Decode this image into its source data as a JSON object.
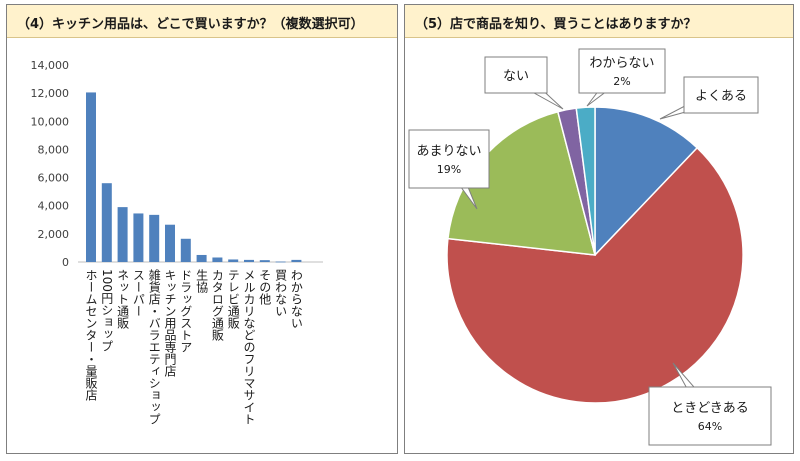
{
  "chart_data": [
    {
      "type": "bar",
      "title": "（4）キッチン用品は、どこで買いますか？（複数選択可）",
      "categories": [
        "ホームセンター・量販店",
        "100円ショップ",
        "ネット通販",
        "スーパー",
        "雑貨店・バラエティショップ",
        "キッチン用品専門店",
        "ドラッグストア",
        "生協",
        "カタログ通販",
        "テレビ通販",
        "メルカリなどのフリマサイト",
        "その他",
        "買わない",
        "わからない"
      ],
      "values": [
        12050,
        5600,
        3900,
        3450,
        3350,
        2650,
        1650,
        500,
        320,
        180,
        150,
        130,
        30,
        150
      ],
      "yticks": [
        "0",
        "2,000",
        "4,000",
        "6,000",
        "8,000",
        "10,000",
        "12,000",
        "14,000"
      ],
      "ylim": [
        0,
        14000
      ],
      "bar_color": "#4f81bd",
      "grid": false
    },
    {
      "type": "pie",
      "title": "（5）店で商品を知り、買うことはありますか？",
      "slices": [
        {
          "label": "よくある",
          "value": 12,
          "pct_text": "",
          "color": "#4f81bd"
        },
        {
          "label": "ときどきある",
          "value": 64,
          "pct_text": "64%",
          "color": "#c0504d"
        },
        {
          "label": "あまりない",
          "value": 19,
          "pct_text": "19%",
          "color": "#9bbb59"
        },
        {
          "label": "ない",
          "value": 2,
          "pct_text": "",
          "color": "#8064a2"
        },
        {
          "label": "わからない",
          "value": 2,
          "pct_text": "2%",
          "color": "#4bacc6"
        }
      ]
    }
  ]
}
